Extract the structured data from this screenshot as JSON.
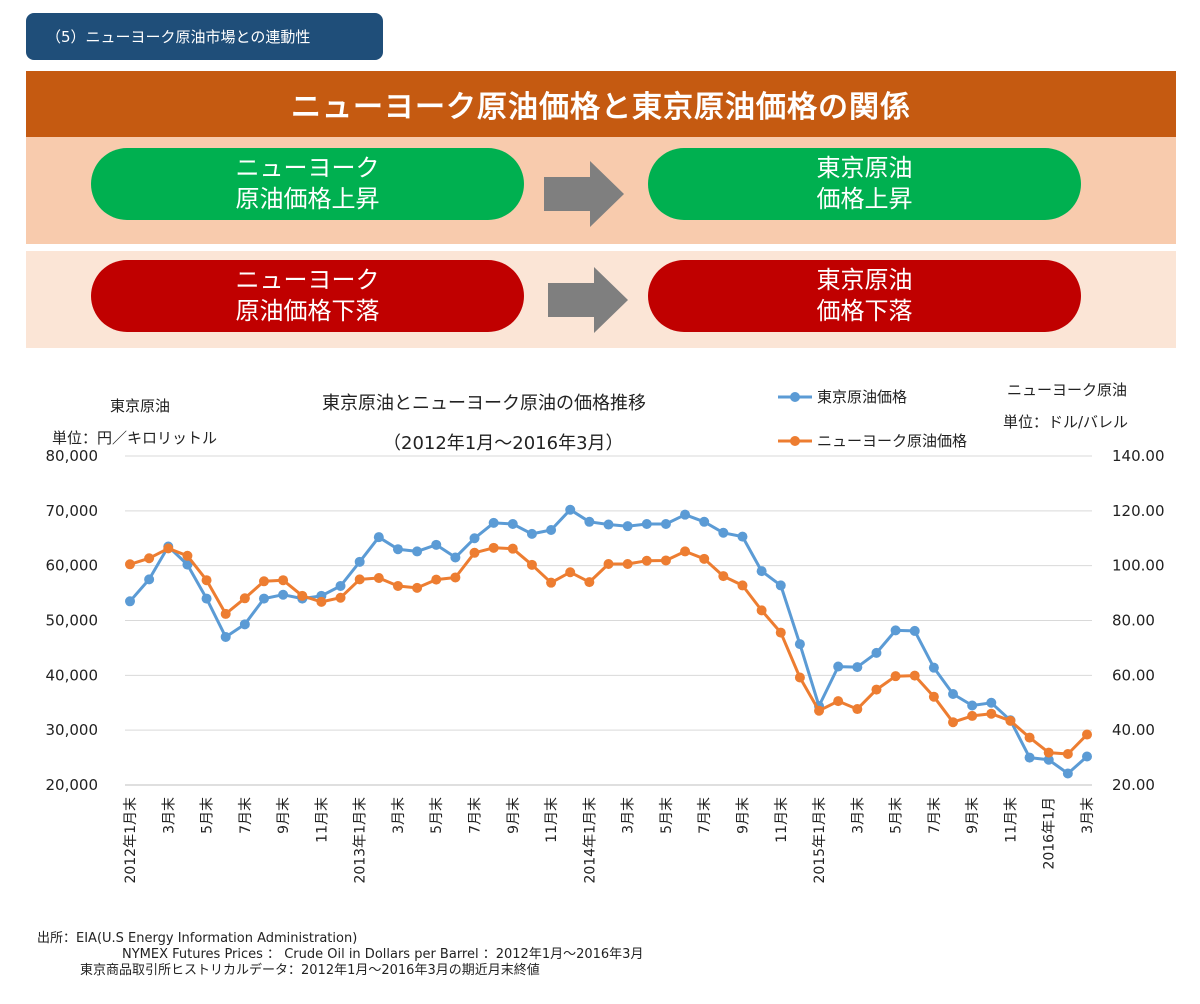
{
  "section_tag": "（5）ニューヨーク原油市場との連動性",
  "banner_title": "ニューヨーク原油価格と東京原油価格の関係",
  "relations": {
    "up": {
      "left": [
        "ニューヨーク",
        "原油価格上昇"
      ],
      "right": [
        "東京原油",
        "価格上昇"
      ]
    },
    "down": {
      "left": [
        "ニューヨーク",
        "原油価格下落"
      ],
      "right": [
        "東京原油",
        "価格下落"
      ]
    }
  },
  "colors": {
    "section_tag": "#1f4e79",
    "banner": "#c55a11",
    "band_up": "#f8cbad",
    "band_down": "#fbe5d6",
    "pill_up": "#00b050",
    "pill_down": "#c00000",
    "arrow": "#7f7f7f",
    "tokyo_series": "#5b9bd5",
    "ny_series": "#ed7d31"
  },
  "chart_data": {
    "type": "line",
    "title": "東京原油とニューヨーク原油の価格推移",
    "subtitle": "（2012年1月～2016年3月）",
    "left_axis_title": "東京原油",
    "left_axis_unit": "単位：円／キロリットル",
    "right_axis_title": "ニューヨーク原油",
    "right_axis_unit": "単位：ドル/バレル",
    "y_left_lim": [
      20000,
      80000
    ],
    "y_right_lim": [
      20,
      140
    ],
    "y_left_ticks": [
      "20,000",
      "30,000",
      "40,000",
      "50,000",
      "60,000",
      "70,000",
      "80,000"
    ],
    "y_right_ticks": [
      "20.00",
      "40.00",
      "60.00",
      "80.00",
      "100.00",
      "120.00",
      "140.00"
    ],
    "x_labels": [
      "2012年1月末",
      "",
      "3月末",
      "",
      "5月末",
      "",
      "7月末",
      "",
      "9月末",
      "",
      "11月末",
      "",
      "2013年1月末",
      "",
      "3月末",
      "",
      "5月末",
      "",
      "7月末",
      "",
      "9月末",
      "",
      "11月末",
      "",
      "2014年1月末",
      "",
      "3月末",
      "",
      "5月末",
      "",
      "7月末",
      "",
      "9月末",
      "",
      "11月末",
      "",
      "2015年1月末",
      "",
      "3月末",
      "",
      "5月末",
      "",
      "7月末",
      "",
      "9月末",
      "",
      "11月末",
      "",
      "2016年1月",
      "",
      "3月末"
    ],
    "grid": true,
    "legend_position": "top-right",
    "series": [
      {
        "name": "東京原油価格",
        "axis": "left",
        "values": [
          53500,
          57500,
          63500,
          60200,
          54000,
          47000,
          49300,
          54000,
          54700,
          54000,
          54500,
          56300,
          60700,
          65200,
          63000,
          62600,
          63800,
          61500,
          65000,
          67800,
          67600,
          65800,
          66500,
          70200,
          68000,
          67500,
          67200,
          67600,
          67600,
          69300,
          68000,
          66000,
          65300,
          59000,
          56400,
          45700,
          34400,
          41600,
          41500,
          44100,
          48200,
          48100,
          41400,
          36600,
          34500,
          35000,
          31800,
          25000,
          24600,
          22100,
          25200
        ]
      },
      {
        "name": "ニューヨーク原油価格",
        "axis": "right",
        "values": [
          100.5,
          102.7,
          106.3,
          103.6,
          94.7,
          82.4,
          88.1,
          94.3,
          94.7,
          89.0,
          86.8,
          88.3,
          95.0,
          95.5,
          92.6,
          91.9,
          94.9,
          95.7,
          104.7,
          106.5,
          106.2,
          100.3,
          93.8,
          97.6,
          94.0,
          100.6,
          100.6,
          101.8,
          101.9,
          105.2,
          102.5,
          96.2,
          92.8,
          83.7,
          75.6,
          59.2,
          47.1,
          50.6,
          47.7,
          54.8,
          59.7,
          59.9,
          52.2,
          42.9,
          45.2,
          46.0,
          43.4,
          37.3,
          31.8,
          31.3,
          38.4
        ]
      }
    ]
  },
  "source": {
    "line1": "出所：EIA(U.S Energy Information Administration)",
    "line2": "NYMEX Futures Prices ： Crude Oil in Dollars per Barrel ：2012年1月～2016年3月",
    "line3": "東京商品取引所ヒストリカルデータ：2012年1月～2016年3月の期近月末終値"
  }
}
